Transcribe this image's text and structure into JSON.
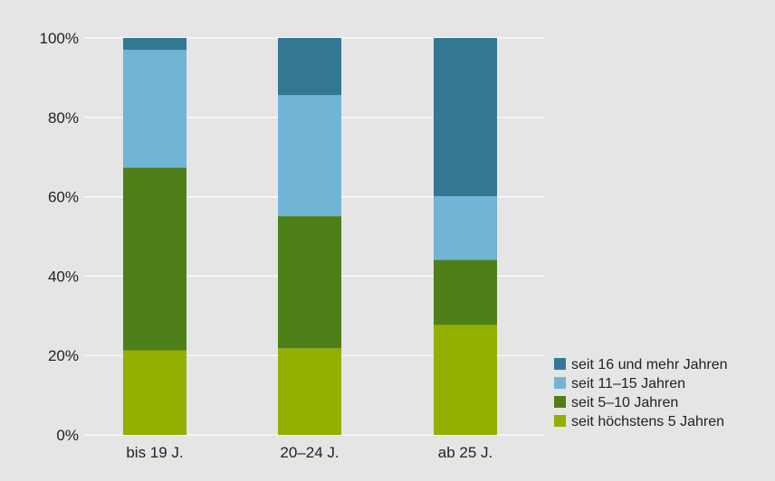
{
  "chart_data": {
    "type": "bar",
    "stacked": true,
    "categories": [
      "bis 19 J.",
      "20–24 J.",
      "ab 25 J."
    ],
    "series": [
      {
        "name": "seit höchstens 5 Jahren",
        "color": "#93b000",
        "values": [
          21.3,
          21.8,
          27.7
        ]
      },
      {
        "name": "seit 5–10 Jahren",
        "color": "#4e7f18",
        "values": [
          46.0,
          33.3,
          16.4
        ]
      },
      {
        "name": "seit 11–15 Jahren",
        "color": "#70b4d6",
        "values": [
          29.7,
          30.5,
          16.0
        ]
      },
      {
        "name": "seit 16 und mehr Jahren",
        "color": "#337893",
        "values": [
          3.0,
          14.4,
          39.9
        ]
      }
    ],
    "ylim": [
      0,
      100
    ],
    "yticks": [
      "0%",
      "20%",
      "40%",
      "60%",
      "80%",
      "100%"
    ],
    "ytick_values": [
      0,
      20,
      40,
      60,
      80,
      100
    ],
    "grid": true,
    "legend_position": "bottom-right",
    "legend_order": [
      "seit 16 und mehr Jahren",
      "seit 11–15 Jahren",
      "seit 5–10 Jahren",
      "seit höchstens 5 Jahren"
    ],
    "title": "",
    "xlabel": "",
    "ylabel": ""
  }
}
